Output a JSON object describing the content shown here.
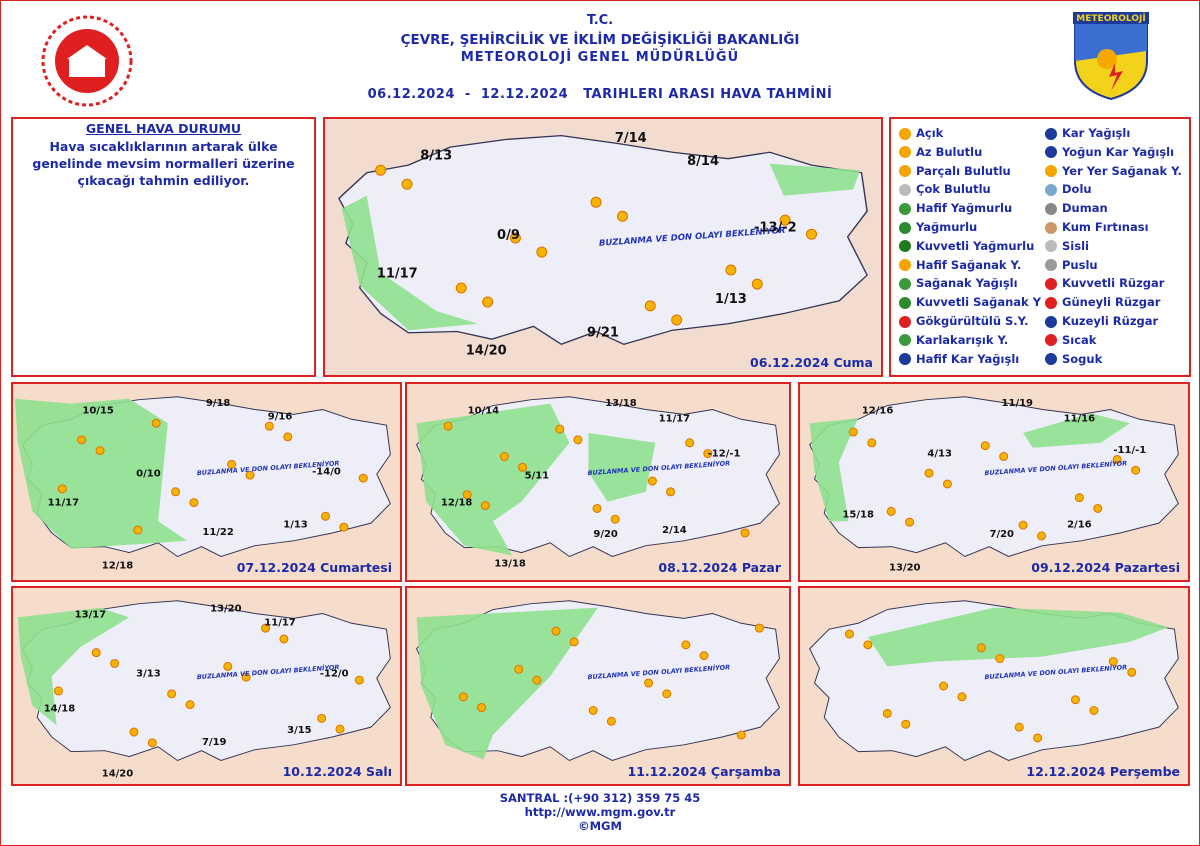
{
  "header": {
    "tc": "T.C.",
    "ministry": "ÇEVRE, ŞEHİRCİLİK VE İKLİM DEĞİŞİKLİĞİ BAKANLIĞI",
    "directorate": "METEOROLOJİ GENEL MÜDÜRLÜĞÜ",
    "title": "06.12.2024  -  12.12.2024   TARIHLERI ARASI HAVA TAHMİNİ",
    "logo": "METEOROLOJİ"
  },
  "general": {
    "heading": "GENEL HAVA DURUMU",
    "text": "Hava sıcaklıklarının artarak ülke genelinde mevsim normalleri üzerine çıkacağı tahmin ediliyor."
  },
  "legend": {
    "left": [
      "Açık",
      "Az Bulutlu",
      "Parçalı Bulutlu",
      "Çok Bulutlu",
      "Hafif Yağmurlu",
      "Yağmurlu",
      "Kuvvetli Yağmurlu",
      "Hafif Sağanak Y.",
      "Sağanak Yağışlı",
      "Kuvvetli Sağanak Y",
      "Gökgürültülü S.Y.",
      "Karlakarışık Y.",
      "Hafif Kar Yağışlı"
    ],
    "right": [
      "Kar Yağışlı",
      "Yoğun Kar Yağışlı",
      "Yer Yer Sağanak Y.",
      "Dolu",
      "Duman",
      "Kum Fırtınası",
      "Sisli",
      "Puslu",
      "Kuvvetli Rüzgar",
      "Güneyli Rüzgar",
      "Kuzeyli Rüzgar",
      "Sıcak",
      "Soguk"
    ]
  },
  "maps": [
    {
      "date": "06.12.2024 Cuma",
      "warning": "BUZLANMA VE DON OLAYI BEKLENİYOR",
      "temps": [
        "8/13",
        "7/14",
        "8/14",
        "0/9",
        "-13/-2",
        "11/17",
        "1/13",
        "9/21",
        "14/20"
      ]
    },
    {
      "date": "07.12.2024 Cumartesi",
      "warning": "BUZLANMA VE DON OLAYI BEKLENİYOR",
      "temps": [
        "10/15",
        "9/18",
        "9/16",
        "0/10",
        "-14/0",
        "11/17",
        "11/22",
        "1/13",
        "12/18"
      ]
    },
    {
      "date": "08.12.2024 Pazar",
      "warning": "BUZLANMA VE DON OLAYI BEKLENİYOR",
      "temps": [
        "10/14",
        "13/18",
        "11/17",
        "5/11",
        "-12/-1",
        "12/18",
        "9/20",
        "2/14",
        "13/18"
      ]
    },
    {
      "date": "09.12.2024 Pazartesi",
      "warning": "BUZLANMA VE DON OLAYI BEKLENİYOR",
      "temps": [
        "12/16",
        "11/19",
        "11/16",
        "4/13",
        "-11/-1",
        "15/18",
        "7/20",
        "2/16",
        "13/20"
      ]
    },
    {
      "date": "10.12.2024 Salı",
      "warning": "BUZLANMA VE DON OLAYI BEKLENİYOR",
      "temps": [
        "13/17",
        "13/20",
        "11/17",
        "3/13",
        "-12/0",
        "14/18",
        "7/19",
        "3/15",
        "14/20"
      ]
    },
    {
      "date": "11.12.2024 Çarşamba",
      "warning": "BUZLANMA VE DON OLAYI BEKLENİYOR"
    },
    {
      "date": "12.12.2024 Perşembe",
      "warning": "BUZLANMA VE DON OLAYI BEKLENİYOR"
    }
  ],
  "footer": {
    "phone": "SANTRAL :(+90 312) 359 75 45",
    "url": "http://www.mgm.gov.tr",
    "copyright": "©MGM"
  }
}
